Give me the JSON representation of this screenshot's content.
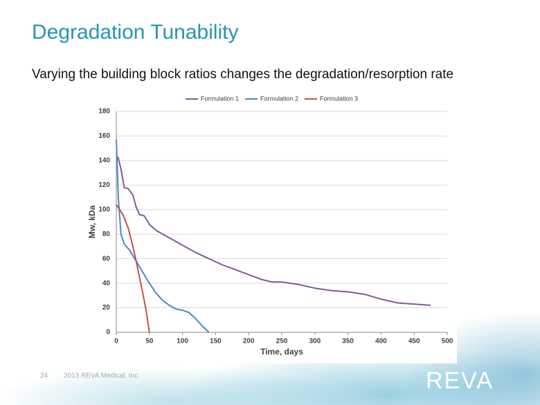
{
  "slide": {
    "title": "Degradation Tunability",
    "subtitle": "Varying the building block ratios changes the degradation/resorption rate",
    "page_number": "24",
    "footer": "2013 REVA Medical, Inc.",
    "logo": "REVA"
  },
  "chart_data": {
    "type": "line",
    "x_label": "Time, days",
    "y_label": "Mw, kDa",
    "xlim": [
      0,
      500
    ],
    "xticks": [
      0,
      50,
      100,
      150,
      200,
      250,
      300,
      350,
      400,
      450,
      500
    ],
    "ylim": [
      0,
      180
    ],
    "yticks": [
      0,
      20,
      40,
      60,
      80,
      100,
      120,
      140,
      160,
      180
    ],
    "grid": true,
    "legend": "top",
    "series": [
      {
        "name": "Formulation 1",
        "color": "#7e5a9b",
        "x": [
          0,
          3,
          7,
          12,
          18,
          25,
          30,
          35,
          42,
          50,
          60,
          80,
          100,
          120,
          140,
          160,
          180,
          200,
          220,
          235,
          250,
          275,
          300,
          325,
          350,
          375,
          400,
          425,
          450,
          475
        ],
        "values": [
          144,
          142,
          133,
          118,
          117,
          112,
          102,
          96,
          95,
          88,
          83,
          77,
          71,
          65,
          60,
          55,
          51,
          47,
          43,
          41,
          41,
          39,
          36,
          34,
          33,
          31,
          27,
          24,
          23,
          22
        ]
      },
      {
        "name": "Formulation 2",
        "color": "#4a87c8",
        "x": [
          0,
          3,
          7,
          12,
          20,
          30,
          40,
          50,
          60,
          70,
          80,
          90,
          100,
          110,
          120,
          130,
          140
        ],
        "values": [
          157,
          110,
          80,
          72,
          67,
          58,
          49,
          40,
          32,
          26,
          22,
          19,
          18,
          16,
          11,
          5,
          0
        ]
      },
      {
        "name": "Formulation 3",
        "color": "#c0504d",
        "x": [
          0,
          10,
          18,
          25,
          30,
          35,
          40,
          45,
          50
        ],
        "values": [
          104,
          96,
          85,
          70,
          58,
          45,
          32,
          18,
          0
        ]
      }
    ]
  }
}
